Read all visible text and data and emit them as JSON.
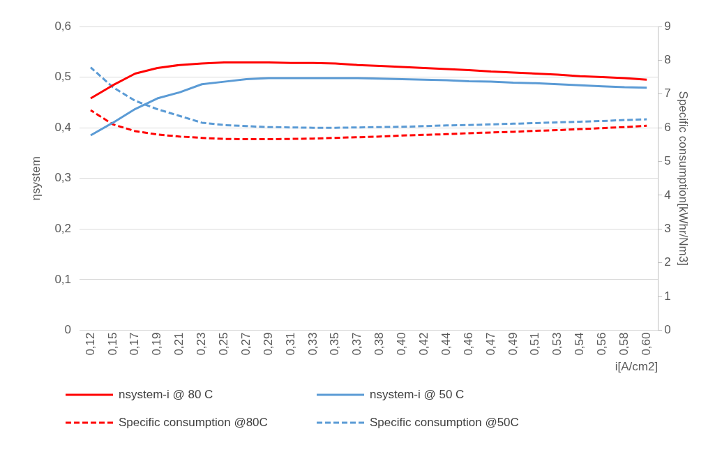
{
  "chart_data": {
    "type": "line",
    "xlabel": "i[A/cm2]",
    "ylabel": "ηsystem",
    "y2label": "Specific consumption[kWhr/Nm3]",
    "categories": [
      "0,12",
      "0,15",
      "0,17",
      "0,19",
      "0,21",
      "0,23",
      "0,25",
      "0,27",
      "0,29",
      "0,31",
      "0,33",
      "0,35",
      "0,37",
      "0,38",
      "0,40",
      "0,42",
      "0,44",
      "0,46",
      "0,47",
      "0,49",
      "0,51",
      "0,53",
      "0,54",
      "0,56",
      "0,58",
      "0,60"
    ],
    "series": [
      {
        "name": "nsystem-i @ 80 C",
        "color": "#ff0000",
        "line_style": "solid",
        "values": [
          0.458,
          0.484,
          0.507,
          0.518,
          0.524,
          0.527,
          0.529,
          0.529,
          0.529,
          0.528,
          0.528,
          0.527,
          0.524,
          0.522,
          0.52,
          0.518,
          0.516,
          0.514,
          0.511,
          0.509,
          0.507,
          0.505,
          0.502,
          0.5,
          0.498,
          0.495
        ]
      },
      {
        "name": "nsystem-i @ 50 C",
        "color": "#5b9bd5",
        "line_style": "solid",
        "values": [
          0.385,
          0.41,
          0.437,
          0.458,
          0.47,
          0.486,
          0.491,
          0.496,
          0.498,
          0.498,
          0.498,
          0.498,
          0.498,
          0.497,
          0.496,
          0.495,
          0.494,
          0.492,
          0.491,
          0.489,
          0.488,
          0.486,
          0.484,
          0.482,
          0.48,
          0.479
        ]
      },
      {
        "name": "Specific consumption @80C",
        "color": "#ff0000",
        "line_style": "dashed",
        "axis": "y2",
        "values": [
          6.52,
          6.1,
          5.9,
          5.8,
          5.74,
          5.7,
          5.67,
          5.66,
          5.66,
          5.67,
          5.68,
          5.7,
          5.72,
          5.74,
          5.77,
          5.79,
          5.81,
          5.84,
          5.86,
          5.88,
          5.91,
          5.93,
          5.96,
          5.99,
          6.02,
          6.06
        ]
      },
      {
        "name": "Specific consumption @50C",
        "color": "#5b9bd5",
        "line_style": "dashed",
        "axis": "y2",
        "values": [
          7.79,
          7.2,
          6.8,
          6.55,
          6.35,
          6.15,
          6.08,
          6.05,
          6.02,
          6.01,
          6.0,
          6.0,
          6.01,
          6.02,
          6.03,
          6.05,
          6.07,
          6.08,
          6.1,
          6.12,
          6.14,
          6.16,
          6.18,
          6.2,
          6.23,
          6.25
        ]
      }
    ],
    "ylim": [
      0,
      0.6
    ],
    "yticks": [
      {
        "value": 0,
        "label": "0"
      },
      {
        "value": 0.1,
        "label": "0,1"
      },
      {
        "value": 0.2,
        "label": "0,2"
      },
      {
        "value": 0.3,
        "label": "0,3"
      },
      {
        "value": 0.4,
        "label": "0,4"
      },
      {
        "value": 0.5,
        "label": "0,5"
      },
      {
        "value": 0.6,
        "label": "0,6"
      }
    ],
    "y2lim": [
      0,
      9
    ],
    "y2ticks": [
      0,
      1,
      2,
      3,
      4,
      5,
      6,
      7,
      8,
      9
    ],
    "grid": "y",
    "legend": "bottom",
    "marker": "none"
  }
}
